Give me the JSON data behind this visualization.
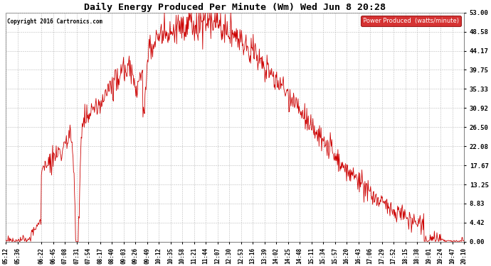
{
  "title": "Daily Energy Produced Per Minute (Wm) Wed Jun 8 20:28",
  "legend_label": "Power Produced  (watts/minute)",
  "copyright": "Copyright 2016 Cartronics.com",
  "line_color": "#cc0000",
  "legend_bg": "#cc0000",
  "legend_text_color": "#ffffff",
  "bg_color": "#ffffff",
  "grid_color": "#bbbbbb",
  "y_ticks": [
    0.0,
    4.42,
    8.83,
    13.25,
    17.67,
    22.08,
    26.5,
    30.92,
    35.33,
    39.75,
    44.17,
    48.58,
    53.0
  ],
  "y_max": 53.0,
  "x_tick_labels": [
    "05:12",
    "05:36",
    "06:22",
    "06:45",
    "07:08",
    "07:31",
    "07:54",
    "08:17",
    "08:40",
    "09:03",
    "09:26",
    "09:49",
    "10:12",
    "10:35",
    "10:58",
    "11:21",
    "11:44",
    "12:07",
    "12:30",
    "12:53",
    "13:16",
    "13:39",
    "14:02",
    "14:25",
    "14:48",
    "15:11",
    "15:34",
    "15:57",
    "16:20",
    "16:43",
    "17:06",
    "17:29",
    "17:52",
    "18:15",
    "18:38",
    "19:01",
    "19:24",
    "19:47",
    "20:10"
  ],
  "figsize": [
    6.9,
    3.75
  ],
  "dpi": 100
}
